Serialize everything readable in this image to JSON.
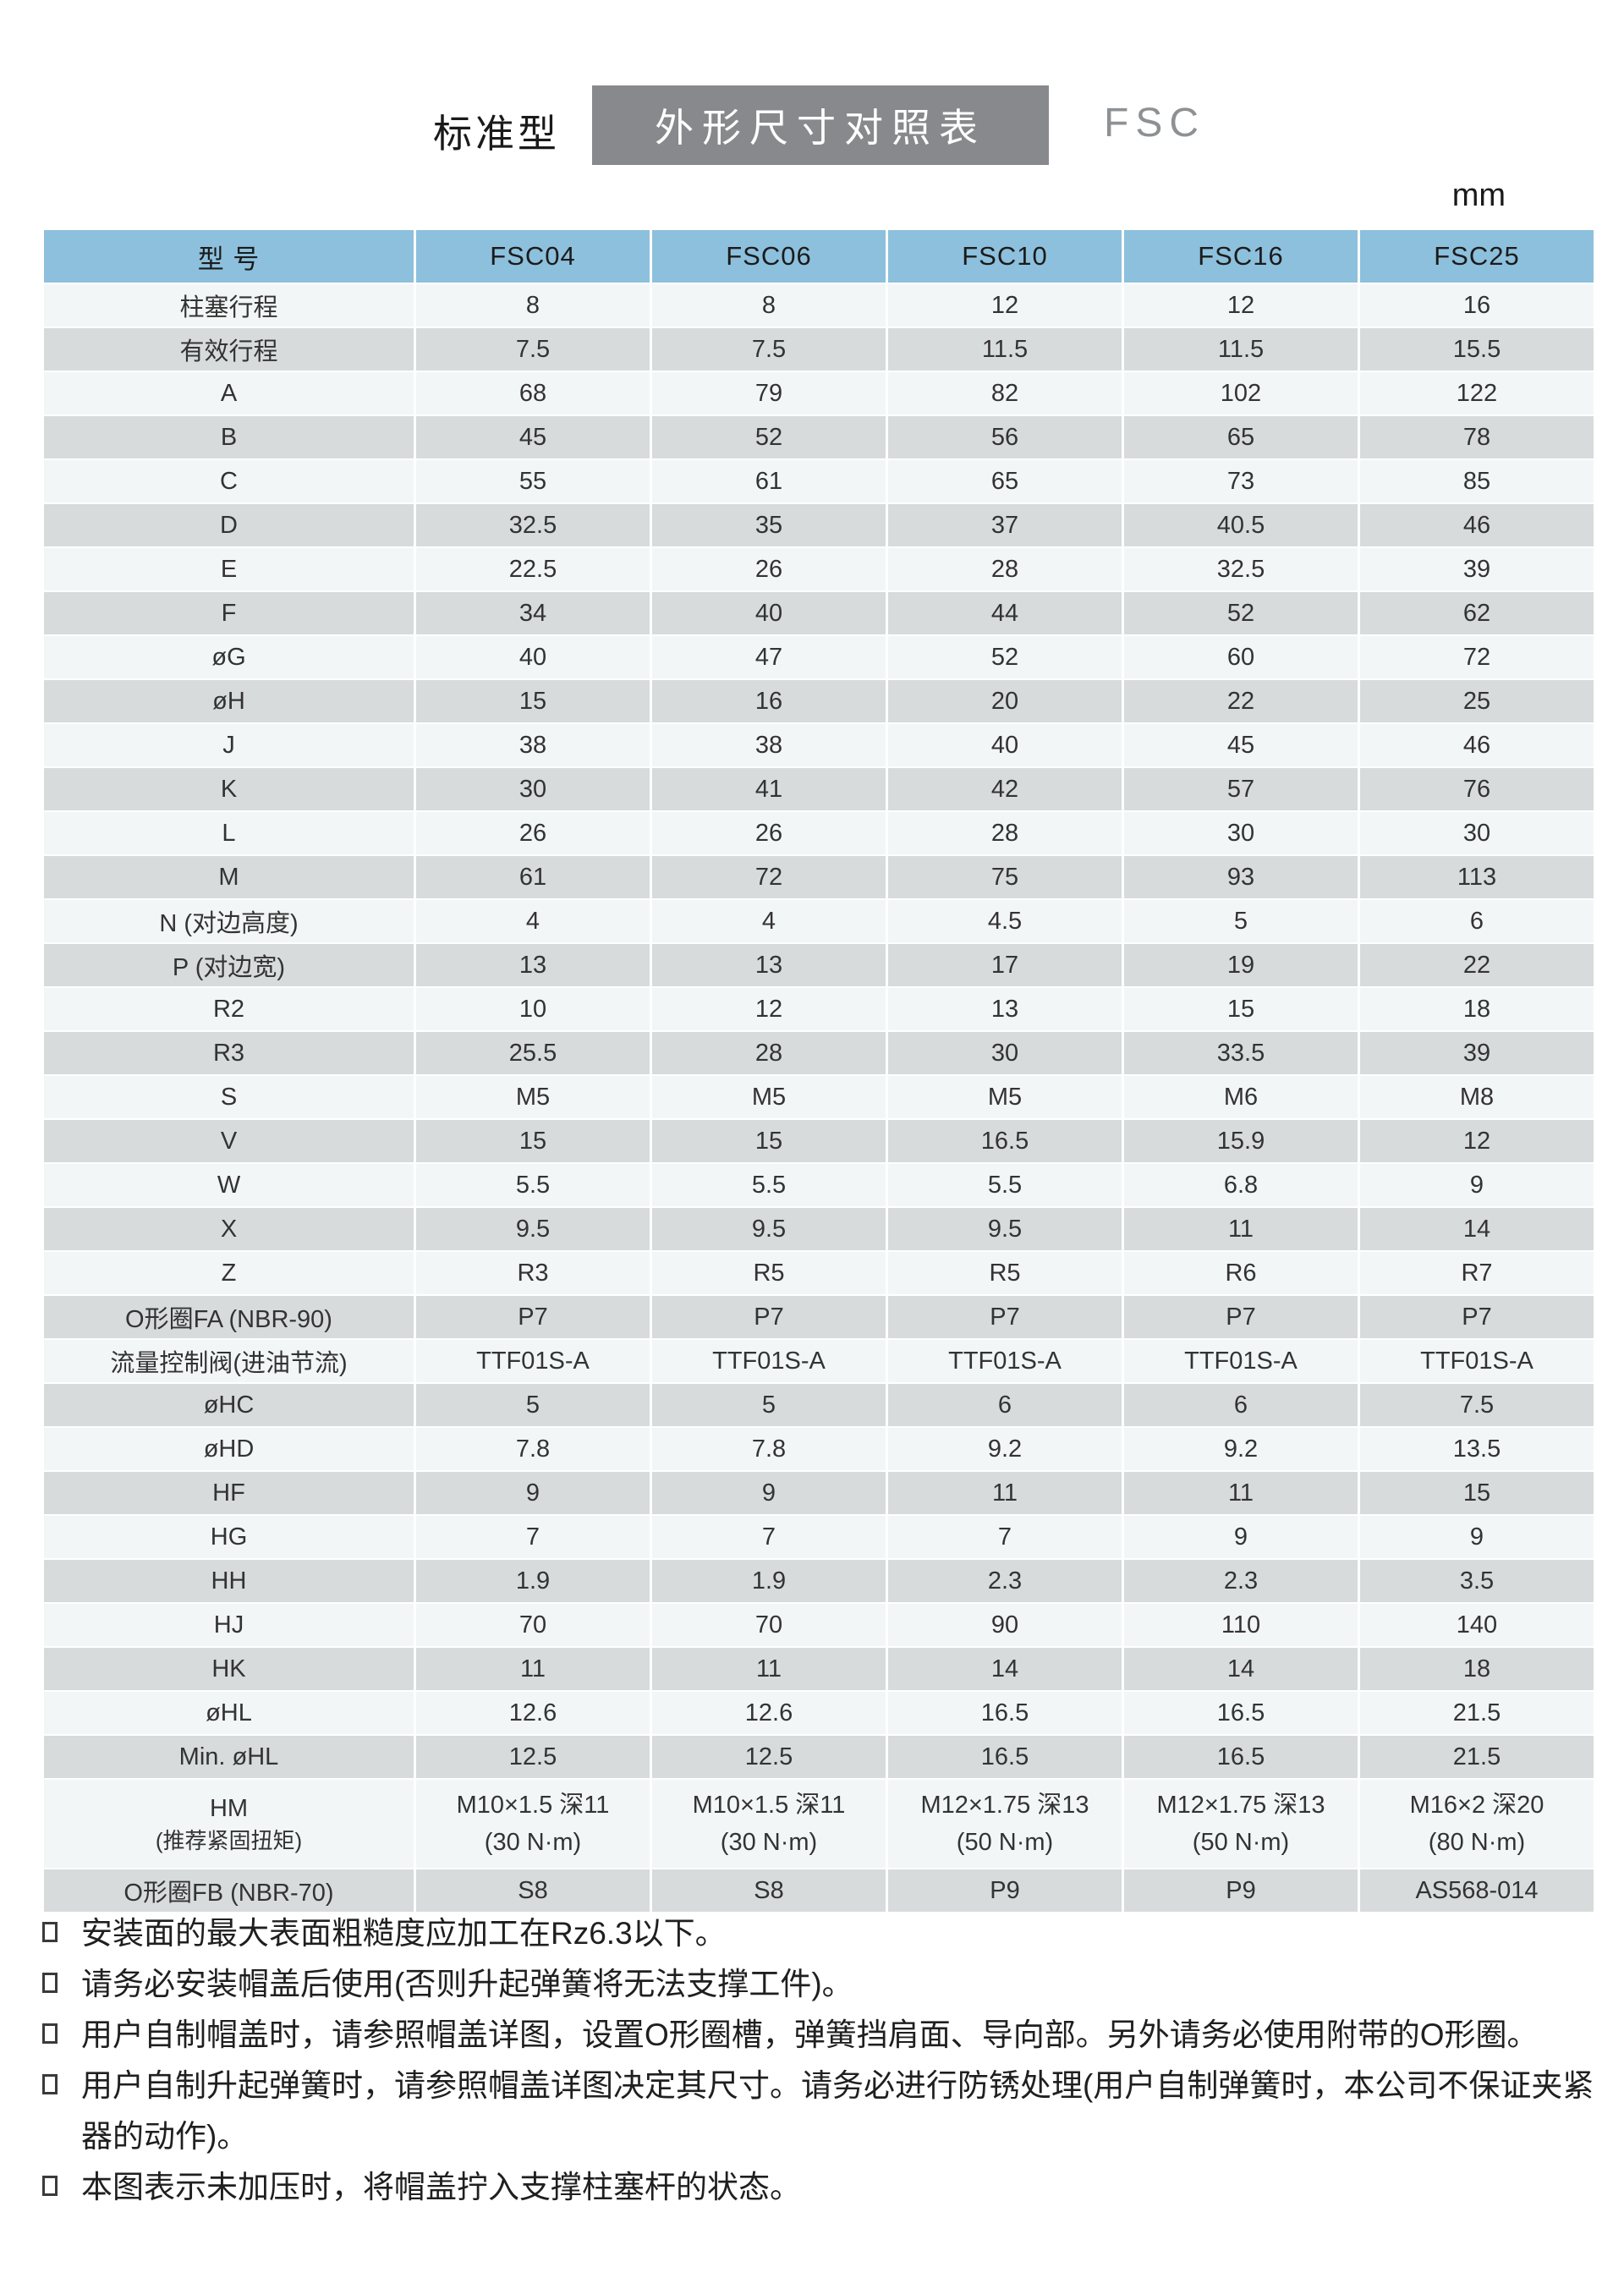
{
  "header": {
    "prefix": "标准型",
    "box_title": "外形尺寸对照表",
    "series": "FSC",
    "unit": "mm"
  },
  "table": {
    "header": [
      "型  号",
      "FSC04",
      "FSC06",
      "FSC10",
      "FSC16",
      "FSC25"
    ],
    "rows": [
      {
        "label": "柱塞行程",
        "values": [
          "8",
          "8",
          "12",
          "12",
          "16"
        ]
      },
      {
        "label": "有效行程",
        "values": [
          "7.5",
          "7.5",
          "11.5",
          "11.5",
          "15.5"
        ]
      },
      {
        "label": "A",
        "values": [
          "68",
          "79",
          "82",
          "102",
          "122"
        ]
      },
      {
        "label": "B",
        "values": [
          "45",
          "52",
          "56",
          "65",
          "78"
        ]
      },
      {
        "label": "C",
        "values": [
          "55",
          "61",
          "65",
          "73",
          "85"
        ]
      },
      {
        "label": "D",
        "values": [
          "32.5",
          "35",
          "37",
          "40.5",
          "46"
        ]
      },
      {
        "label": "E",
        "values": [
          "22.5",
          "26",
          "28",
          "32.5",
          "39"
        ]
      },
      {
        "label": "F",
        "values": [
          "34",
          "40",
          "44",
          "52",
          "62"
        ]
      },
      {
        "label": "øG",
        "values": [
          "40",
          "47",
          "52",
          "60",
          "72"
        ]
      },
      {
        "label": "øH",
        "values": [
          "15",
          "16",
          "20",
          "22",
          "25"
        ]
      },
      {
        "label": "J",
        "values": [
          "38",
          "38",
          "40",
          "45",
          "46"
        ]
      },
      {
        "label": "K",
        "values": [
          "30",
          "41",
          "42",
          "57",
          "76"
        ]
      },
      {
        "label": "L",
        "values": [
          "26",
          "26",
          "28",
          "30",
          "30"
        ]
      },
      {
        "label": "M",
        "values": [
          "61",
          "72",
          "75",
          "93",
          "113"
        ]
      },
      {
        "label": "N (对边高度)",
        "values": [
          "4",
          "4",
          "4.5",
          "5",
          "6"
        ]
      },
      {
        "label": "P (对边宽)",
        "values": [
          "13",
          "13",
          "17",
          "19",
          "22"
        ]
      },
      {
        "label": "R2",
        "values": [
          "10",
          "12",
          "13",
          "15",
          "18"
        ]
      },
      {
        "label": "R3",
        "values": [
          "25.5",
          "28",
          "30",
          "33.5",
          "39"
        ]
      },
      {
        "label": "S",
        "values": [
          "M5",
          "M5",
          "M5",
          "M6",
          "M8"
        ]
      },
      {
        "label": "V",
        "values": [
          "15",
          "15",
          "16.5",
          "15.9",
          "12"
        ]
      },
      {
        "label": "W",
        "values": [
          "5.5",
          "5.5",
          "5.5",
          "6.8",
          "9"
        ]
      },
      {
        "label": "X",
        "values": [
          "9.5",
          "9.5",
          "9.5",
          "11",
          "14"
        ]
      },
      {
        "label": "Z",
        "values": [
          "R3",
          "R5",
          "R5",
          "R6",
          "R7"
        ]
      },
      {
        "label": "O形圈FA (NBR-90)",
        "values": [
          "P7",
          "P7",
          "P7",
          "P7",
          "P7"
        ]
      },
      {
        "label": "流量控制阀(进油节流)",
        "values": [
          "TTF01S-A",
          "TTF01S-A",
          "TTF01S-A",
          "TTF01S-A",
          "TTF01S-A"
        ]
      },
      {
        "label": "øHC",
        "values": [
          "5",
          "5",
          "6",
          "6",
          "7.5"
        ]
      },
      {
        "label": "øHD",
        "values": [
          "7.8",
          "7.8",
          "9.2",
          "9.2",
          "13.5"
        ]
      },
      {
        "label": "HF",
        "values": [
          "9",
          "9",
          "11",
          "11",
          "15"
        ]
      },
      {
        "label": "HG",
        "values": [
          "7",
          "7",
          "7",
          "9",
          "9"
        ]
      },
      {
        "label": "HH",
        "values": [
          "1.9",
          "1.9",
          "2.3",
          "2.3",
          "3.5"
        ]
      },
      {
        "label": "HJ",
        "values": [
          "70",
          "70",
          "90",
          "110",
          "140"
        ]
      },
      {
        "label": "HK",
        "values": [
          "11",
          "11",
          "14",
          "14",
          "18"
        ]
      },
      {
        "label": "øHL",
        "values": [
          "12.6",
          "12.6",
          "16.5",
          "16.5",
          "21.5"
        ]
      },
      {
        "label": "Min. øHL",
        "values": [
          "12.5",
          "12.5",
          "16.5",
          "16.5",
          "21.5"
        ]
      },
      {
        "label": "HM",
        "label_sub": "(推荐紧固扭矩)",
        "tall": true,
        "values": [
          [
            "M10×1.5 深11",
            "(30 N·m)"
          ],
          [
            "M10×1.5 深11",
            "(30 N·m)"
          ],
          [
            "M12×1.75 深13",
            "(50 N·m)"
          ],
          [
            "M12×1.75 深13",
            "(50 N·m)"
          ],
          [
            "M16×2 深20",
            "(80 N·m)"
          ]
        ]
      },
      {
        "label": "O形圈FB (NBR-70)",
        "values": [
          "S8",
          "S8",
          "P9",
          "P9",
          "AS568-014"
        ]
      }
    ]
  },
  "notes": [
    "安装面的最大表面粗糙度应加工在Rz6.3以下。",
    "请务必安装帽盖后使用(否则升起弹簧将无法支撑工件)。",
    "用户自制帽盖时，请参照帽盖详图，设置O形圈槽，弹簧挡肩面、导向部。另外请务必使用附带的O形圈。",
    "用户自制升起弹簧时，请参照帽盖详图决定其尺寸。请务必进行防锈处理(用户自制弹簧时，本公司不保证夹紧器的动作)。",
    "本图表示未加压时，将帽盖拧入支撑柱塞杆的状态。"
  ]
}
